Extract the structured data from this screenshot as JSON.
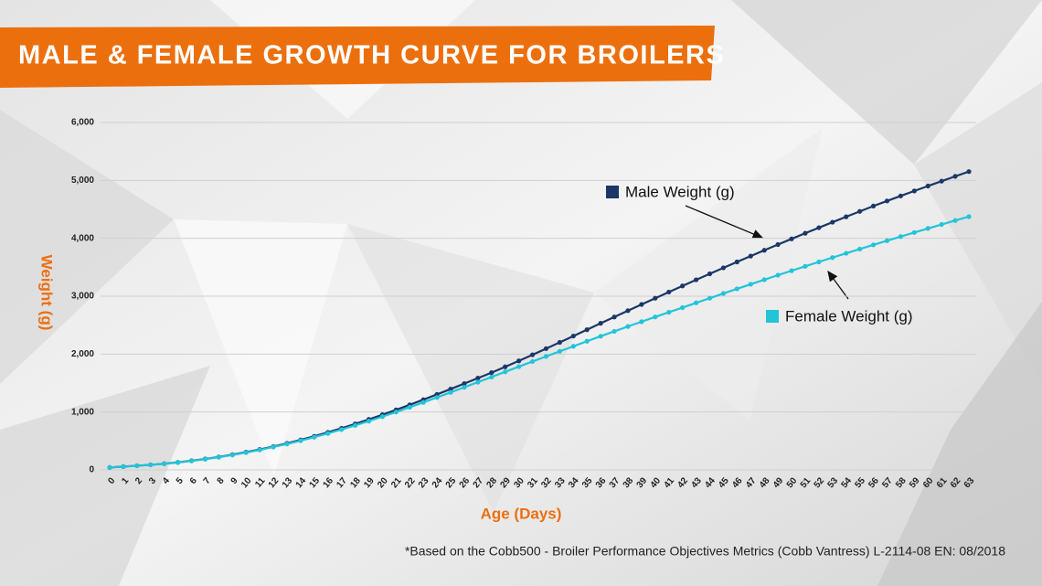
{
  "chart_data": {
    "type": "line",
    "title": "MALE & FEMALE GROWTH CURVE FOR BROILERS",
    "x_label": "Age (Days)",
    "y_label": "Weight (g)",
    "footnote": "*Based on the Cobb500 - Broiler Performance Objectives Metrics (Cobb Vantress) L-2114-08 EN: 08/2018",
    "x": [
      0,
      1,
      2,
      3,
      4,
      5,
      6,
      7,
      8,
      9,
      10,
      11,
      12,
      13,
      14,
      15,
      16,
      17,
      18,
      19,
      20,
      21,
      22,
      23,
      24,
      25,
      26,
      27,
      28,
      29,
      30,
      31,
      32,
      33,
      34,
      35,
      36,
      37,
      38,
      39,
      40,
      41,
      42,
      43,
      44,
      45,
      46,
      47,
      48,
      49,
      50,
      51,
      52,
      53,
      54,
      55,
      56,
      57,
      58,
      59,
      60,
      61,
      62,
      63
    ],
    "xlim": [
      0,
      63
    ],
    "ylim": [
      0,
      6000
    ],
    "yticks": [
      0,
      {
        "value": 1000,
        "label": "1,000"
      },
      {
        "value": 2000,
        "label": "2,000"
      },
      {
        "value": 3000,
        "label": "3,000"
      },
      {
        "value": 4000,
        "label": "4,000"
      },
      {
        "value": 5000,
        "label": "5,000"
      },
      {
        "value": 6000,
        "label": "6,000"
      }
    ],
    "grid": true,
    "series": [
      {
        "name": "Male Weight (g)",
        "color": "#1b3768",
        "values": [
          42,
          57,
          72,
          88,
          107,
          130,
          158,
          189,
          224,
          263,
          306,
          353,
          404,
          459,
          518,
          581,
          648,
          719,
          794,
          872,
          953,
          1037,
          1124,
          1213,
          1304,
          1396,
          1490,
          1585,
          1680,
          1780,
          1883,
          1988,
          2095,
          2203,
          2312,
          2422,
          2532,
          2641,
          2750,
          2858,
          2965,
          3072,
          3178,
          3283,
          3387,
          3490,
          3592,
          3693,
          3793,
          3892,
          3990,
          4087,
          4183,
          4278,
          4372,
          4465,
          4557,
          4645,
          4732,
          4818,
          4903,
          4987,
          5070,
          5152
        ]
      },
      {
        "name": "Female Weight (g)",
        "color": "#22c4d8",
        "values": [
          42,
          56,
          71,
          87,
          106,
          128,
          155,
          185,
          219,
          257,
          299,
          345,
          395,
          448,
          505,
          566,
          630,
          698,
          769,
          843,
          920,
          1000,
          1082,
          1166,
          1252,
          1339,
          1427,
          1516,
          1605,
          1694,
          1783,
          1872,
          1960,
          2048,
          2135,
          2222,
          2308,
          2393,
          2477,
          2560,
          2642,
          2723,
          2803,
          2885,
          2966,
          3047,
          3127,
          3206,
          3285,
          3363,
          3440,
          3516,
          3592,
          3667,
          3741,
          3814,
          3887,
          3959,
          4030,
          4100,
          4170,
          4239,
          4307,
          4374
        ]
      }
    ]
  }
}
